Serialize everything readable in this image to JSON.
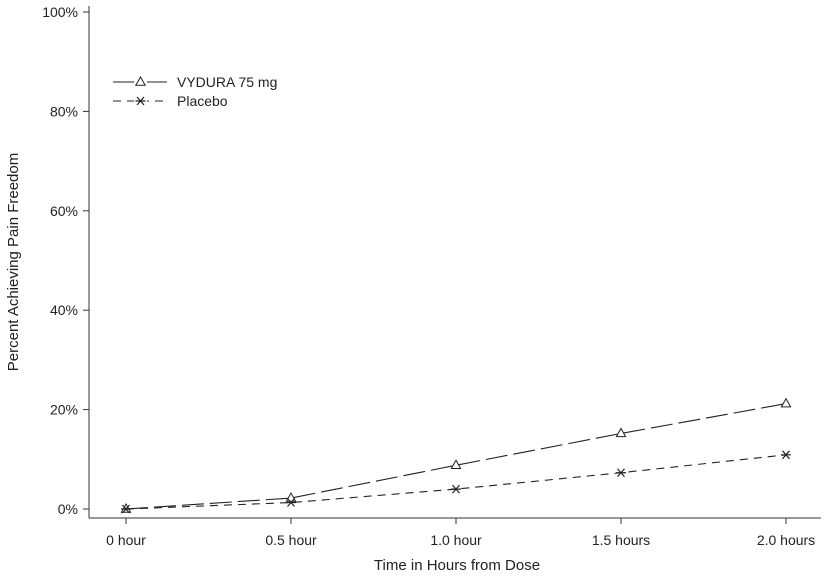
{
  "chart_data": {
    "type": "line",
    "title": "",
    "xlabel": "Time in Hours from Dose",
    "ylabel": "Percent Achieving Pain Freedom",
    "categories": [
      "0 hour",
      "0.5 hour",
      "1.0 hour",
      "1.5 hours",
      "2.0 hours"
    ],
    "x": [
      0,
      0.5,
      1.0,
      1.5,
      2.0
    ],
    "ylim": [
      0,
      100
    ],
    "yticks": [
      "0%",
      "20%",
      "40%",
      "60%",
      "80%",
      "100%"
    ],
    "grid": false,
    "legend_position": "top-left",
    "series": [
      {
        "name": "VYDURA 75 mg",
        "values": [
          0,
          2.2,
          8.8,
          15.2,
          21.2
        ],
        "marker": "triangle",
        "line_style": "long-dash",
        "color": "#222222"
      },
      {
        "name": "Placebo",
        "values": [
          0,
          1.3,
          4.0,
          7.3,
          10.9
        ],
        "marker": "asterisk",
        "line_style": "short-dash",
        "color": "#222222"
      }
    ]
  }
}
